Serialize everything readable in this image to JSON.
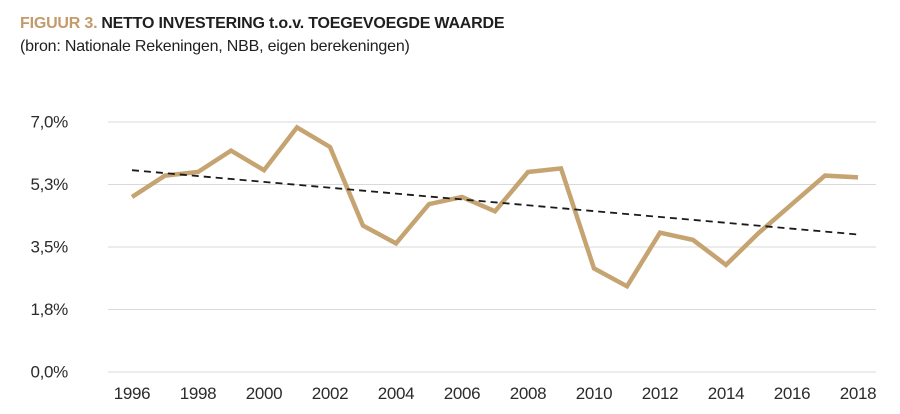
{
  "header": {
    "figure_label": "FIGUUR 3.",
    "title": "NETTO INVESTERING t.o.v. TOEGEVOEGDE WAARDE",
    "source": "(bron: Nationale Rekeningen, NBB, eigen berekeningen)"
  },
  "colors": {
    "accent": "#C49A6B",
    "line": "#C5A471",
    "grid": "#D9D9D9",
    "trend": "#1A1A1A",
    "tick_text": "#2B2B2B"
  },
  "chart_data": {
    "type": "line",
    "title": "NETTO INVESTERING t.o.v. TOEGEVOEGDE WAARDE",
    "source": "(bron: Nationale Rekeningen, NBB, eigen berekeningen)",
    "xlabel": "",
    "ylabel": "",
    "x": [
      1996,
      1997,
      1998,
      1999,
      2000,
      2001,
      2002,
      2003,
      2004,
      2005,
      2006,
      2007,
      2008,
      2009,
      2010,
      2011,
      2012,
      2013,
      2014,
      2015,
      2016,
      2017,
      2018
    ],
    "series": [
      {
        "name": "netto investering t.o.v. toegevoegde waarde",
        "values": [
          4.9,
          5.5,
          5.6,
          6.2,
          5.65,
          6.85,
          6.3,
          4.1,
          3.6,
          4.7,
          4.9,
          4.5,
          5.6,
          5.7,
          2.9,
          2.4,
          3.9,
          3.7,
          3.0,
          3.9,
          4.7,
          5.5,
          5.45
        ]
      }
    ],
    "trendline": {
      "style": "dashed",
      "start_x": 1996,
      "start_value": 5.65,
      "end_x": 2018,
      "end_value": 3.85
    },
    "yticks": [
      {
        "value": 0,
        "label": "0,0%"
      },
      {
        "value": 1.75,
        "label": "1,8%"
      },
      {
        "value": 3.5,
        "label": "3,5%"
      },
      {
        "value": 5.25,
        "label": "5,3%"
      },
      {
        "value": 7,
        "label": "7,0%"
      }
    ],
    "xticks": [
      1996,
      1998,
      2000,
      2002,
      2004,
      2006,
      2008,
      2010,
      2012,
      2014,
      2016,
      2018
    ],
    "ylim": [
      0,
      7
    ],
    "grid": "horizontal",
    "legend_position": "none"
  }
}
